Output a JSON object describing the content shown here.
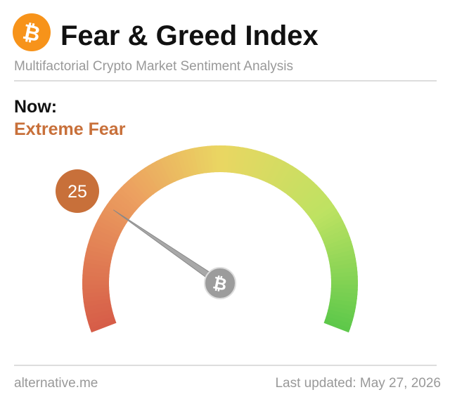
{
  "chart_data": {
    "type": "gauge",
    "title": "Fear & Greed Index",
    "subtitle": "Multifactorial Crypto Market Sentiment Analysis",
    "now_label": "Now:",
    "classification": "Extreme Fear",
    "value": 25,
    "ylim": [
      0,
      100
    ],
    "source": "alternative.me",
    "updated": "Last updated: May 27, 2026"
  }
}
